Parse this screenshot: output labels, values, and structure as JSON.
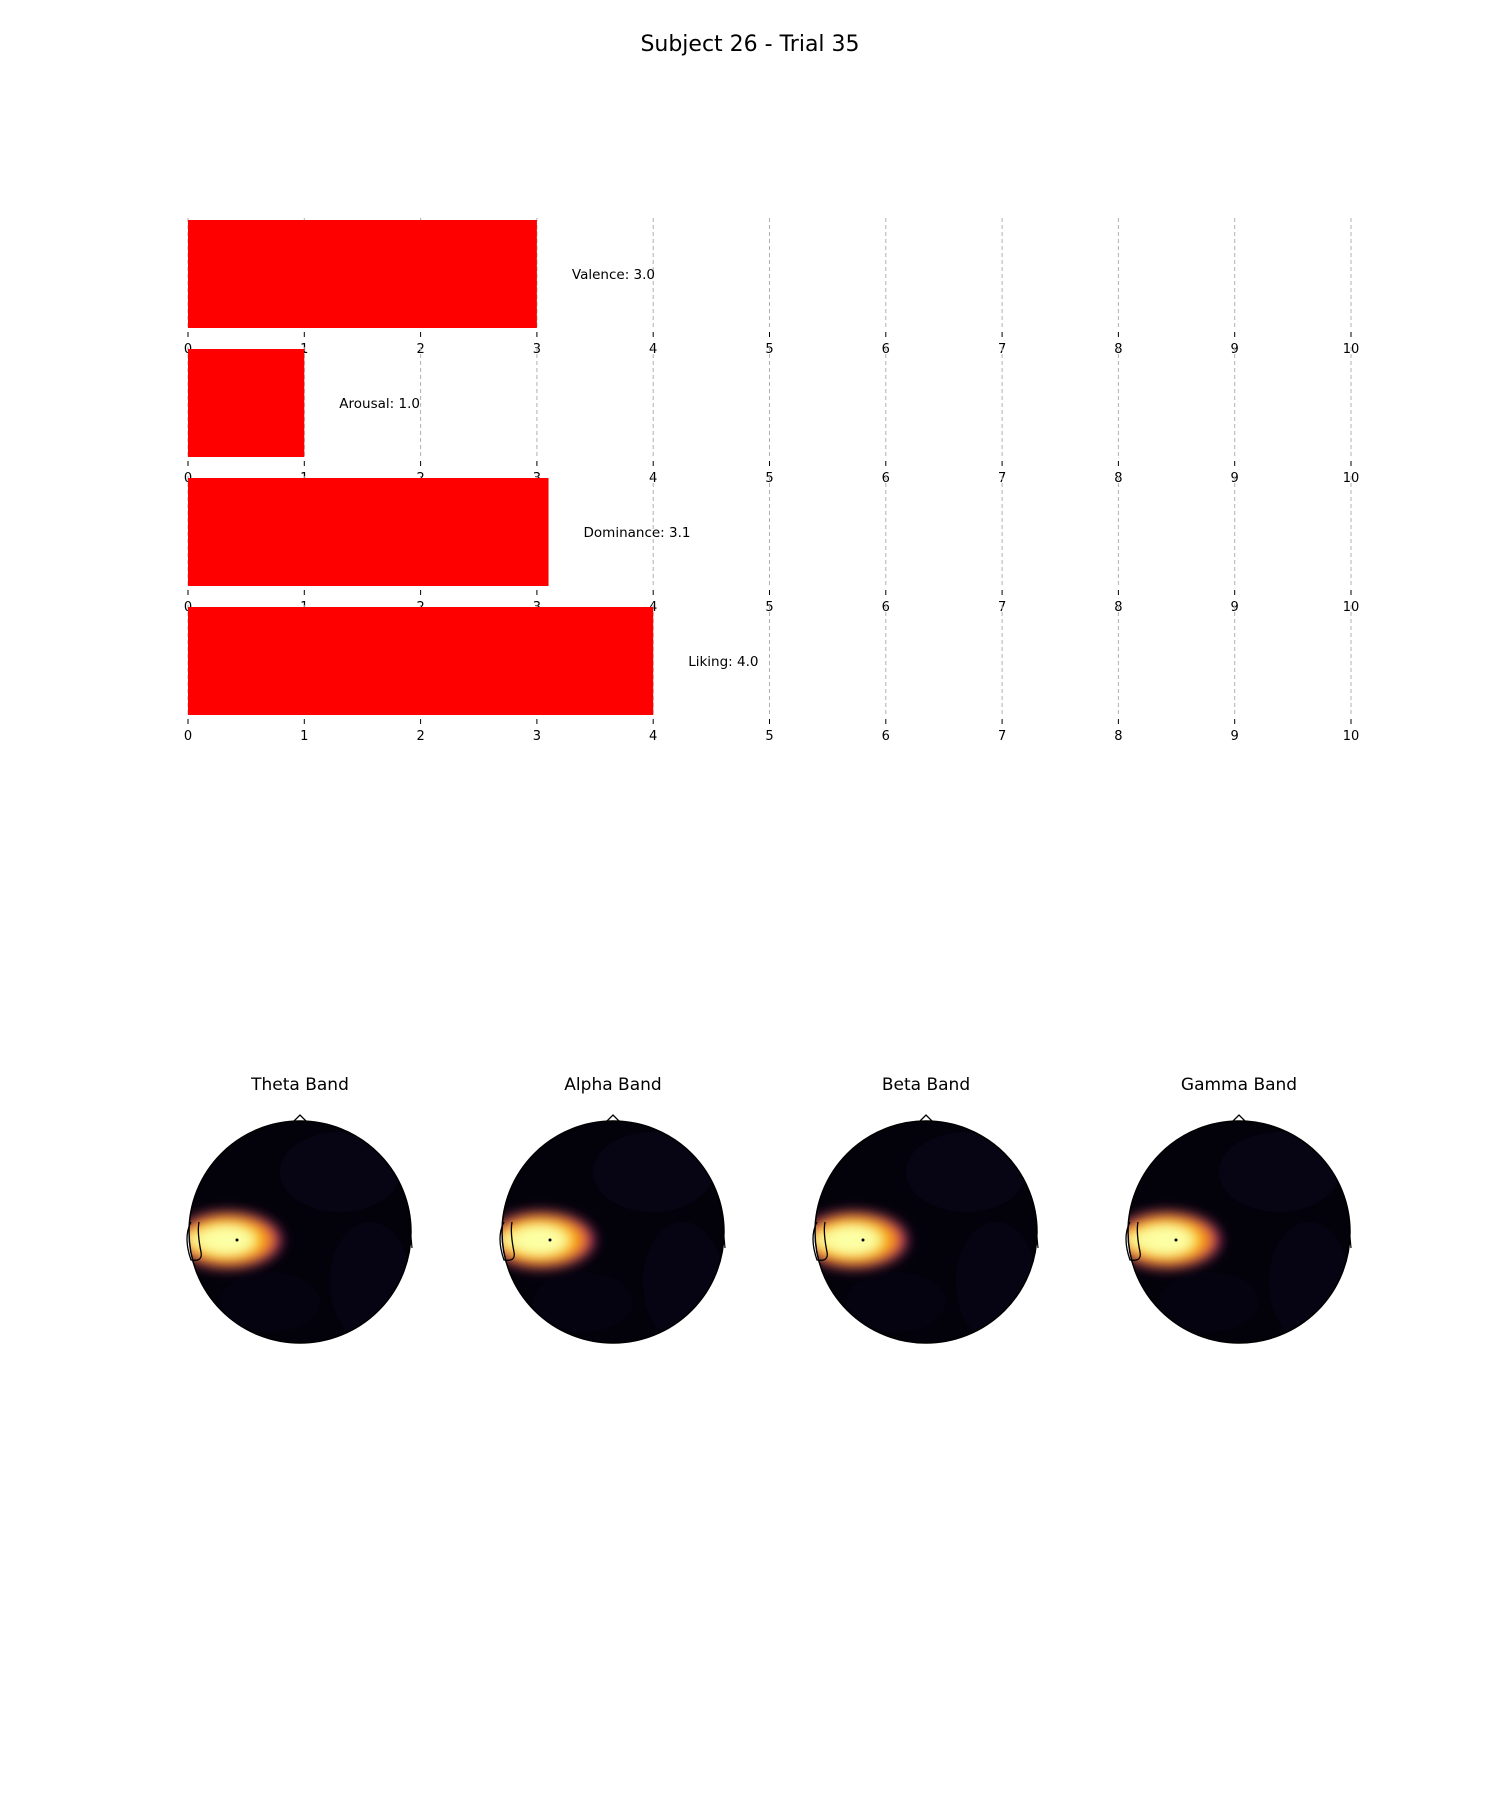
{
  "figure": {
    "title": "Subject 26 - Trial 35"
  },
  "chart_data": [
    {
      "type": "bar",
      "orientation": "horizontal",
      "categories": [
        "Valence",
        "Arousal",
        "Dominance",
        "Liking"
      ],
      "values": [
        3.0,
        1.0,
        3.1,
        4.0
      ],
      "annotations": [
        "Valence: 3.0",
        "Arousal: 1.0",
        "Dominance: 3.1",
        "Liking: 4.0"
      ],
      "xlim": [
        0,
        10
      ],
      "xticks": [
        0,
        1,
        2,
        3,
        4,
        5,
        6,
        7,
        8,
        9,
        10
      ],
      "grid": "x-dashed",
      "bar_color": "#ff0000"
    },
    {
      "type": "heatmap",
      "subtype": "eeg-topomap",
      "panels": [
        {
          "title": "Theta Band"
        },
        {
          "title": "Alpha Band"
        },
        {
          "title": "Beta Band"
        },
        {
          "title": "Gamma Band"
        }
      ],
      "colormap": "inferno",
      "hotspot_region": "left-temporal"
    }
  ]
}
